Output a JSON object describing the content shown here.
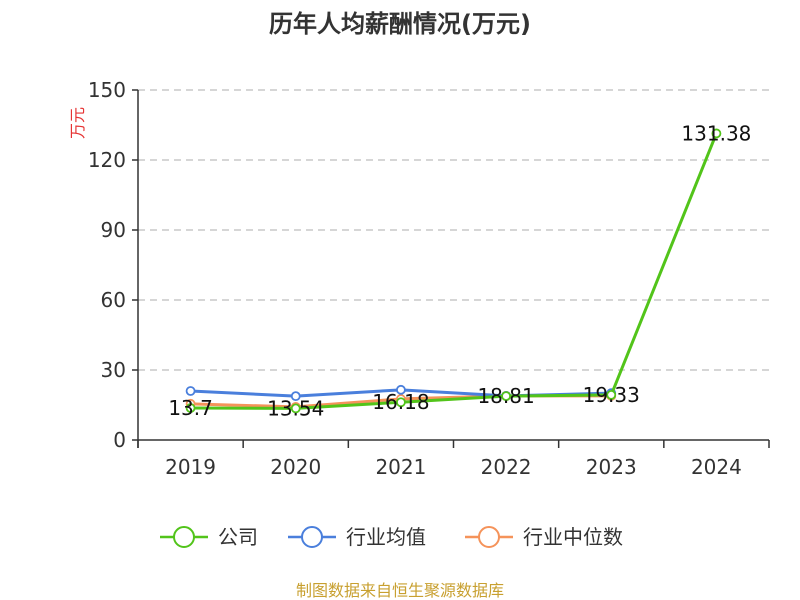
{
  "chart_data": {
    "type": "line",
    "title": "历年人均薪酬情况(万元)",
    "ylabel": "万元",
    "xlabel": "",
    "categories": [
      "2019",
      "2020",
      "2021",
      "2022",
      "2023",
      "2024"
    ],
    "ylim": [
      0,
      150
    ],
    "yticks": [
      0,
      30,
      60,
      90,
      120,
      150
    ],
    "grid": "horizontal-dashed",
    "legend_position": "bottom",
    "series": [
      {
        "name": "公司",
        "color": "#52c41a",
        "values": [
          13.7,
          13.54,
          16.18,
          18.81,
          19.33,
          131.38
        ],
        "labels": [
          "13.7",
          "13.54",
          "16.18",
          "18.81",
          "19.33",
          "131.38"
        ]
      },
      {
        "name": "行业均值",
        "color": "#4a7fdc",
        "values": [
          21.0,
          18.8,
          21.5,
          18.9,
          20.1,
          null
        ]
      },
      {
        "name": "行业中位数",
        "color": "#f5935a",
        "values": [
          15.5,
          14.2,
          17.6,
          18.9,
          18.9,
          null
        ]
      }
    ],
    "source": "制图数据来自恒生聚源数据库"
  }
}
